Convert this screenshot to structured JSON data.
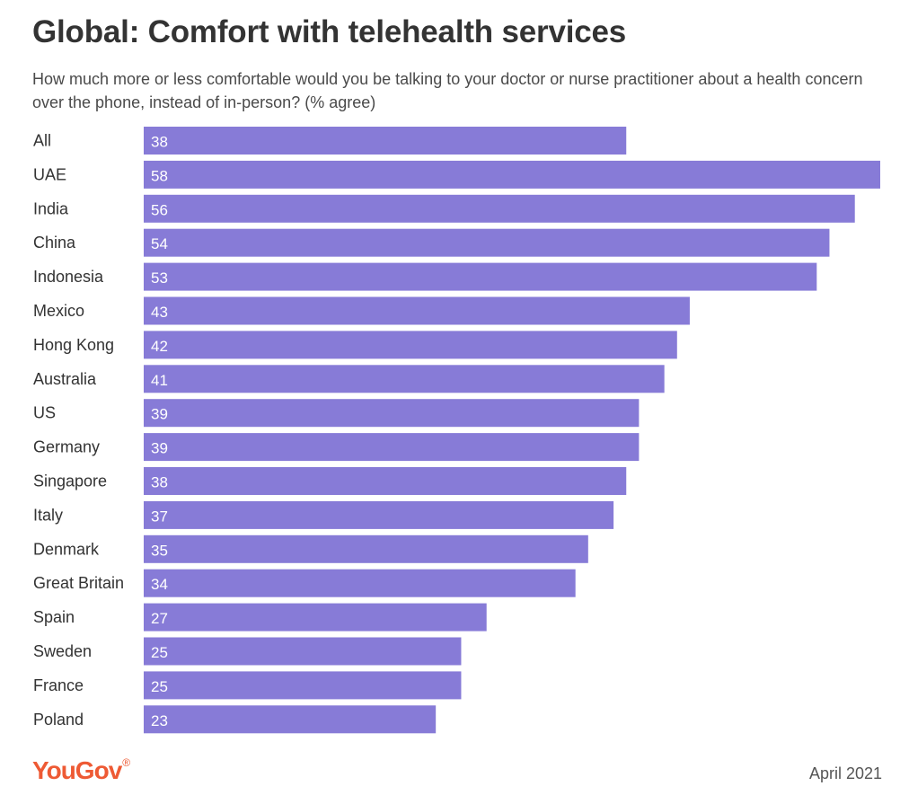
{
  "chart_data": {
    "type": "bar",
    "orientation": "horizontal",
    "title": "Global: Comfort with telehealth services",
    "subtitle": "How much more or less comfortable would you be talking to your doctor or nurse practitioner about a health concern over the phone, instead of in-person? (% agree)",
    "categories": [
      "All",
      "UAE",
      "India",
      "China",
      "Indonesia",
      "Mexico",
      "Hong Kong",
      "Australia",
      "US",
      "Germany",
      "Singapore",
      "Italy",
      "Denmark",
      "Great Britain",
      "Spain",
      "Sweden",
      "France",
      "Poland"
    ],
    "values": [
      38,
      58,
      56,
      54,
      53,
      43,
      42,
      41,
      39,
      39,
      38,
      37,
      35,
      34,
      27,
      25,
      25,
      23
    ],
    "xlim": [
      0,
      58
    ],
    "xlabel": "",
    "ylabel": "",
    "grid": false,
    "bar_color": "#877bd7",
    "value_label_color": "#ffffff"
  },
  "footer": {
    "brand": "YouGov",
    "brand_mark": "®",
    "brand_color": "#ee5a34",
    "date": "April 2021"
  }
}
